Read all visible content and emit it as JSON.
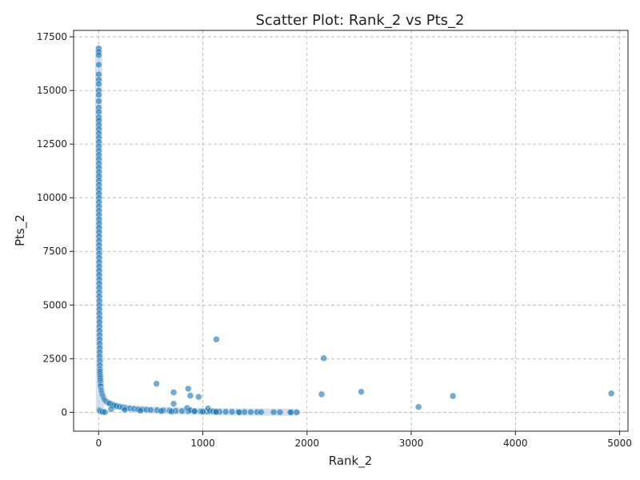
{
  "chart_data": {
    "type": "scatter",
    "title": "Scatter Plot: Rank_2 vs Pts_2",
    "xlabel": "Rank_2",
    "ylabel": "Pts_2",
    "xlim": [
      -240,
      5080
    ],
    "ylim": [
      -880,
      17800
    ],
    "xticks": [
      0,
      1000,
      2000,
      3000,
      4000,
      5000
    ],
    "yticks": [
      0,
      2500,
      5000,
      7500,
      10000,
      12500,
      15000,
      17500
    ],
    "xtick_labels": [
      "0",
      "1000",
      "2000",
      "3000",
      "4000",
      "5000"
    ],
    "ytick_labels": [
      "0",
      "2500",
      "5000",
      "7500",
      "10000",
      "12500",
      "15000",
      "17500"
    ],
    "grid": true,
    "legend": "none",
    "color": "#1f77b4",
    "band_color": "#aec7e8",
    "series": [
      {
        "x": [
          1,
          1,
          1,
          1,
          1,
          1,
          1,
          1,
          1,
          1,
          1,
          1,
          1,
          2,
          2,
          2,
          2,
          2,
          2,
          2,
          2,
          2,
          2,
          2,
          2,
          3,
          3,
          3,
          3,
          3,
          3,
          3,
          3,
          3,
          3,
          3,
          4,
          4,
          4,
          4,
          4,
          4,
          4,
          4,
          5,
          5,
          5,
          5,
          5,
          5,
          6,
          6,
          6,
          6,
          6,
          7,
          7,
          7,
          7,
          8,
          8,
          8,
          8,
          9,
          9,
          9,
          10,
          10,
          10,
          11,
          11,
          12,
          12,
          13,
          14,
          15,
          16,
          17,
          18,
          19,
          20,
          22,
          24,
          26,
          28,
          30,
          33,
          36,
          40,
          45,
          50,
          55,
          60,
          70,
          80,
          90,
          100,
          110,
          130,
          150,
          170,
          200,
          230,
          260,
          300,
          340,
          380,
          420,
          460,
          500,
          560,
          620,
          680,
          740,
          800,
          860,
          920,
          980,
          1040,
          1100,
          1160,
          1220,
          1280,
          1340,
          1400,
          1460,
          1520,
          1560,
          1680,
          1740,
          1850,
          1900,
          8,
          20,
          40,
          60,
          120,
          250,
          400,
          600,
          700,
          720,
          850,
          880,
          920,
          1000,
          1050,
          1070,
          1100,
          1120,
          1130,
          1350,
          555,
          720,
          860,
          880,
          960,
          1130,
          2140,
          2520,
          3070,
          3400,
          4920,
          2160,
          1840
        ],
        "y": [
          16950,
          16800,
          16650,
          16200,
          15750,
          15500,
          15300,
          15000,
          14800,
          14500,
          14200,
          14000,
          13750,
          13600,
          13400,
          13200,
          13000,
          12800,
          12600,
          12400,
          12200,
          12000,
          11800,
          11600,
          11400,
          11200,
          11000,
          10800,
          10600,
          10400,
          10200,
          10000,
          9800,
          9600,
          9400,
          9200,
          9000,
          8800,
          8600,
          8400,
          8200,
          8000,
          7800,
          7600,
          7400,
          7200,
          7000,
          6800,
          6600,
          6400,
          6200,
          6000,
          5800,
          5600,
          5400,
          5200,
          5000,
          4800,
          4600,
          4400,
          4200,
          4000,
          3800,
          3600,
          3400,
          3200,
          3000,
          2800,
          2600,
          2400,
          2200,
          2000,
          1900,
          1800,
          1700,
          1600,
          1500,
          1400,
          1300,
          1250,
          1200,
          1100,
          1050,
          1000,
          950,
          900,
          850,
          800,
          750,
          700,
          650,
          600,
          560,
          520,
          480,
          450,
          420,
          400,
          350,
          320,
          290,
          260,
          230,
          200,
          180,
          160,
          140,
          130,
          120,
          110,
          100,
          90,
          80,
          70,
          60,
          55,
          50,
          45,
          40,
          35,
          30,
          25,
          20,
          18,
          15,
          12,
          10,
          8,
          6,
          5,
          4,
          3,
          100,
          50,
          20,
          10,
          150,
          120,
          80,
          60,
          40,
          400,
          200,
          100,
          50,
          30,
          180,
          60,
          50,
          30,
          20,
          0,
          1330,
          930,
          1100,
          780,
          720,
          3400,
          840,
          960,
          250,
          760,
          880,
          2520,
          0
        ]
      }
    ]
  }
}
